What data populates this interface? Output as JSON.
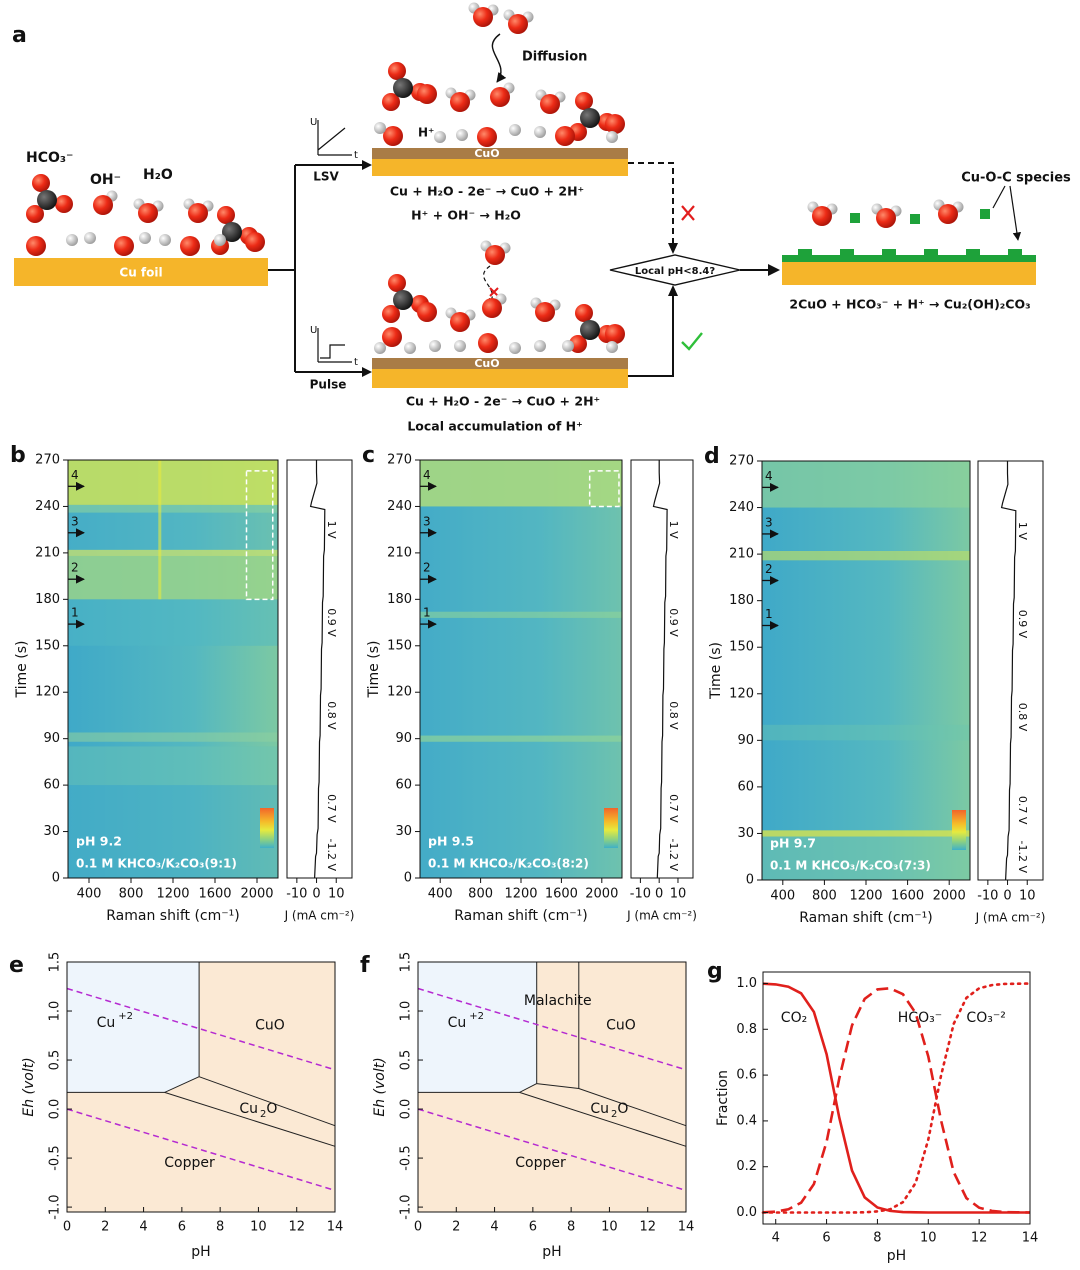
{
  "panel_a": {
    "label": "a",
    "hco3": "HCO₃⁻",
    "oh": "OH⁻",
    "h2o": "H₂O",
    "cu_foil": "Cu foil",
    "lsv": "LSV",
    "pulse": "Pulse",
    "u_axis": "U",
    "t_axis": "t",
    "cuo": "CuO",
    "diffusion": "Diffusion",
    "h_plus": "H⁺",
    "eq_lsv_1": "Cu + H₂O - 2e⁻ → CuO + 2H⁺",
    "eq_lsv_2": "H⁺  + OH⁻ → H₂O",
    "eq_pulse_1": "Cu + H₂O - 2e⁻ → CuO + 2H⁺",
    "eq_pulse_2": "Local accumulation of H⁺",
    "decision": "Local pH<8.4?",
    "species": "Cu-O-C species",
    "eq_final": "2CuO + HCO₃⁻ + H⁺ → Cu₂(OH)₂CO₃"
  },
  "chart_data": [
    {
      "type": "heatmap",
      "panel": "b",
      "ylabel": "Time (s)",
      "xlabel": "Raman shift (cm⁻¹)",
      "jlabel": "J (mA cm⁻²)",
      "ph": "pH 9.2",
      "electrolyte": "0.1 M KHCO₃/K₂CO₃(9:1)",
      "ylim": [
        0,
        270
      ],
      "yticks": [
        0,
        30,
        60,
        90,
        120,
        150,
        180,
        210,
        240,
        270
      ],
      "xlim": [
        200,
        2200
      ],
      "xticks": [
        400,
        800,
        1200,
        1600,
        2000
      ],
      "jlim": [
        -15,
        18
      ],
      "jticks": [
        -10,
        0,
        10
      ],
      "steps": [
        "1",
        "2",
        "3",
        "4"
      ],
      "voltages": [
        "1 V",
        "0.9 V",
        "0.8 V",
        "0.7 V",
        "-1.2 V"
      ],
      "j_trace": {
        "t": [
          0,
          14,
          16,
          28,
          32,
          58,
          62,
          88,
          92,
          118,
          122,
          148,
          152,
          178,
          182,
          208,
          212,
          238,
          240,
          243,
          255,
          262,
          270
        ],
        "J": [
          -1,
          -0.5,
          0,
          0.3,
          0.8,
          1,
          1.3,
          1.5,
          1.8,
          2,
          2.3,
          2.5,
          2.8,
          3,
          3.4,
          3.6,
          4,
          4.2,
          -3,
          -2.5,
          0.2,
          0,
          0
        ]
      }
    },
    {
      "type": "heatmap",
      "panel": "c",
      "ylabel": "Time (s)",
      "xlabel": "Raman shift (cm⁻¹)",
      "jlabel": "J (mA cm⁻²)",
      "ph": "pH 9.5",
      "electrolyte": "0.1 M KHCO₃/K₂CO₃(8:2)",
      "ylim": [
        0,
        270
      ],
      "yticks": [
        0,
        30,
        60,
        90,
        120,
        150,
        180,
        210,
        240,
        270
      ],
      "xlim": [
        200,
        2200
      ],
      "xticks": [
        400,
        800,
        1200,
        1600,
        2000
      ],
      "jlim": [
        -15,
        18
      ],
      "jticks": [
        -10,
        0,
        10
      ],
      "steps": [
        "1",
        "2",
        "3",
        "4"
      ],
      "voltages": [
        "1 V",
        "0.9 V",
        "0.8 V",
        "0.7 V",
        "-1.2 V"
      ],
      "j_trace": {
        "t": [
          0,
          14,
          16,
          28,
          32,
          58,
          62,
          88,
          92,
          118,
          122,
          148,
          152,
          178,
          182,
          208,
          212,
          238,
          240,
          243,
          255,
          262,
          270
        ],
        "J": [
          -1,
          -0.5,
          0,
          0.3,
          0.8,
          1,
          1.3,
          1.5,
          1.8,
          2,
          2.3,
          2.5,
          2.8,
          3,
          3.4,
          3.6,
          4,
          4.2,
          -3,
          -2.5,
          0.2,
          0,
          0
        ]
      }
    },
    {
      "type": "heatmap",
      "panel": "d",
      "ylabel": "Time (s)",
      "xlabel": "Raman shift (cm⁻¹)",
      "jlabel": "J (mA cm⁻²)",
      "ph": "pH 9.7",
      "electrolyte": "0.1 M KHCO₃/K₂CO₃(7:3)",
      "ylim": [
        0,
        270
      ],
      "yticks": [
        0,
        30,
        60,
        90,
        120,
        150,
        180,
        210,
        240,
        270
      ],
      "xlim": [
        200,
        2200
      ],
      "xticks": [
        400,
        800,
        1200,
        1600,
        2000
      ],
      "jlim": [
        -15,
        18
      ],
      "jticks": [
        -10,
        0,
        10
      ],
      "steps": [
        "1",
        "2",
        "3",
        "4"
      ],
      "voltages": [
        "1 V",
        "0.9 V",
        "0.8 V",
        "0.7 V",
        "-1.2 V"
      ],
      "j_trace": {
        "t": [
          0,
          14,
          16,
          28,
          32,
          58,
          62,
          88,
          92,
          118,
          122,
          148,
          152,
          178,
          182,
          208,
          212,
          238,
          240,
          243,
          255,
          262,
          270
        ],
        "J": [
          -1,
          -0.5,
          0,
          0.3,
          0.8,
          1,
          1.3,
          1.5,
          1.8,
          2,
          2.3,
          2.5,
          2.8,
          3,
          3.4,
          3.6,
          4,
          4.2,
          -3,
          -2.5,
          0.2,
          0,
          0
        ]
      }
    },
    {
      "type": "pourbaix",
      "panel": "e",
      "xlabel": "pH",
      "ylabel": "Eh (volt)",
      "xlim": [
        0,
        14
      ],
      "xticks": [
        0,
        2,
        4,
        6,
        8,
        10,
        12,
        14
      ],
      "ylim": [
        -1.05,
        1.5
      ],
      "yticks": [
        {
          "value": -1,
          "label": "-1.0"
        },
        -0.5,
        {
          "value": 0,
          "label": "0.0"
        },
        0.5,
        {
          "value": 1,
          "label": "1.0"
        },
        1.5
      ],
      "cu2_region": {
        "x": [
          0,
          5.1,
          6.9,
          6.9,
          0
        ],
        "y": [
          0.17,
          0.17,
          0.33,
          1.5,
          1.5
        ]
      },
      "boundaries": [
        {
          "x": [
            0,
            5.1,
            6.9,
            6.9
          ],
          "y": [
            0.17,
            0.17,
            0.33,
            1.5
          ]
        },
        {
          "x": [
            6.9,
            14
          ],
          "y": [
            0.33,
            -0.17
          ]
        },
        {
          "x": [
            5.1,
            14
          ],
          "y": [
            0.17,
            -0.38
          ]
        }
      ],
      "water_lines": [
        {
          "x": [
            0,
            14
          ],
          "y": [
            1.23,
            0.4
          ]
        },
        {
          "x": [
            0,
            14
          ],
          "y": [
            0,
            -0.83
          ]
        }
      ],
      "region_labels": [
        {
          "base": "Cu",
          "sup": "+2"
        },
        {
          "base": "CuO"
        },
        {
          "base": "Cu",
          "sub": "2",
          "tail": "O"
        },
        {
          "base": "Copper"
        }
      ]
    },
    {
      "type": "pourbaix",
      "panel": "f",
      "xlabel": "pH",
      "ylabel": "Eh (volt)",
      "xlim": [
        0,
        14
      ],
      "xticks": [
        0,
        2,
        4,
        6,
        8,
        10,
        12,
        14
      ],
      "ylim": [
        -1.05,
        1.5
      ],
      "yticks": [
        {
          "value": -1,
          "label": "-1.0"
        },
        -0.5,
        {
          "value": 0,
          "label": "0.0"
        },
        0.5,
        {
          "value": 1,
          "label": "1.0"
        },
        1.5
      ],
      "cu2_region": {
        "x": [
          0,
          5.3,
          6.2,
          6.2,
          0
        ],
        "y": [
          0.17,
          0.17,
          0.26,
          1.5,
          1.5
        ]
      },
      "boundaries": [
        {
          "x": [
            0,
            5.3,
            6.2,
            6.2
          ],
          "y": [
            0.17,
            0.17,
            0.26,
            1.5
          ]
        },
        {
          "x": [
            6.2,
            8.4,
            14
          ],
          "y": [
            0.26,
            0.21,
            -0.17
          ]
        },
        {
          "x": [
            8.4,
            8.4
          ],
          "y": [
            0.21,
            1.5
          ]
        },
        {
          "x": [
            5.3,
            14
          ],
          "y": [
            0.17,
            -0.38
          ]
        }
      ],
      "water_lines": [
        {
          "x": [
            0,
            14
          ],
          "y": [
            1.23,
            0.4
          ]
        },
        {
          "x": [
            0,
            14
          ],
          "y": [
            0,
            -0.83
          ]
        }
      ],
      "region_labels": [
        {
          "base": "Cu",
          "sup": "+2"
        },
        {
          "base": "CuO"
        },
        {
          "base": "Cu",
          "sub": "2",
          "tail": "O"
        },
        {
          "base": "Copper"
        },
        {
          "base": "Malachite"
        }
      ]
    },
    {
      "type": "line",
      "panel": "g",
      "xlabel": "pH",
      "ylabel": "Fraction",
      "xlim": [
        3.5,
        14
      ],
      "xticks": [
        4,
        6,
        8,
        10,
        12,
        14
      ],
      "ylim": [
        -0.05,
        1.05
      ],
      "yticks": [
        {
          "value": 0,
          "label": "0.0"
        },
        {
          "value": 0.2,
          "label": "0.2"
        },
        {
          "value": 0.4,
          "label": "0.4"
        },
        {
          "value": 0.6,
          "label": "0.6"
        },
        {
          "value": 0.8,
          "label": "0.8"
        },
        {
          "value": 1,
          "label": "1.0"
        }
      ],
      "x": [
        3.5,
        4,
        4.5,
        5,
        5.5,
        6,
        6.5,
        7,
        7.5,
        8,
        8.5,
        9,
        9.5,
        10,
        10.5,
        11,
        11.5,
        12,
        12.5,
        13,
        13.5,
        14
      ],
      "series": [
        {
          "name": "CO₂",
          "color": "#e0201c",
          "dash": "solid",
          "values": [
            0.999,
            0.996,
            0.986,
            0.957,
            0.876,
            0.691,
            0.414,
            0.183,
            0.066,
            0.022,
            0.007,
            0.002,
            0.001,
            0,
            0,
            0,
            0,
            0,
            0,
            0,
            0,
            0
          ]
        },
        {
          "name": "HCO₃⁻",
          "color": "#e0201c",
          "dash": "dashed",
          "values": [
            0.001,
            0.004,
            0.014,
            0.043,
            0.124,
            0.309,
            0.586,
            0.817,
            0.933,
            0.974,
            0.979,
            0.953,
            0.871,
            0.681,
            0.403,
            0.176,
            0.063,
            0.021,
            0.007,
            0.002,
            0.001,
            0
          ]
        },
        {
          "name": "CO₃⁻²",
          "color": "#e0201c",
          "dash": "dotted",
          "values": [
            0,
            0,
            0,
            0,
            0,
            0,
            0,
            0,
            0.001,
            0.005,
            0.014,
            0.045,
            0.129,
            0.319,
            0.597,
            0.824,
            0.937,
            0.979,
            0.993,
            0.998,
            0.999,
            1
          ]
        }
      ]
    }
  ]
}
